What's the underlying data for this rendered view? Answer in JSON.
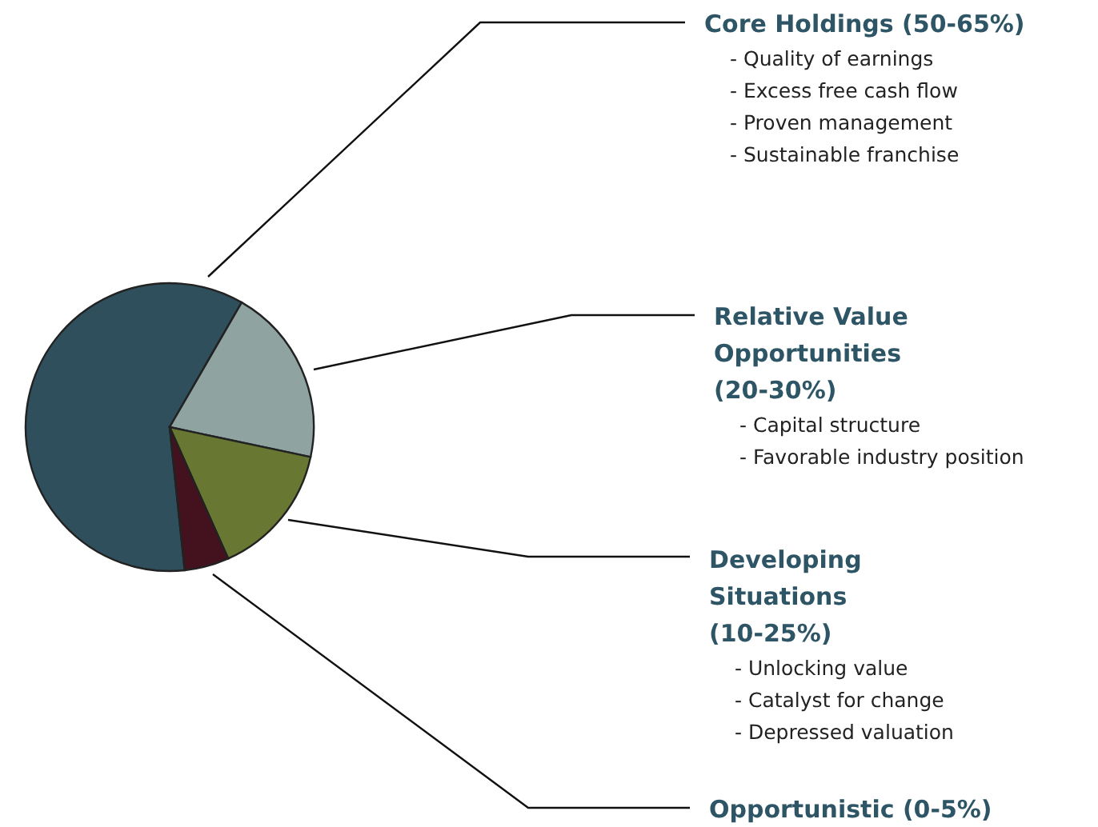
{
  "chart_data": {
    "type": "pie",
    "categories": [
      "Core Holdings (50-65%)",
      "Relative Value Opportunities (20-30%)",
      "Developing Situations (10-25%)",
      "Opportunistic (0-5%)"
    ],
    "values": [
      60,
      20,
      15,
      5
    ],
    "colors": [
      "#2f4f5c",
      "#8fa3a1",
      "#687832",
      "#43121e"
    ],
    "annotations": [
      "- Quality of earnings",
      "- Excess free cash flow",
      "- Proven management",
      "- Sustainable franchise",
      "- Capital structure",
      "- Favorable industry position",
      "- Unlocking value",
      "- Catalyst for change",
      "- Depressed valuation"
    ]
  }
}
